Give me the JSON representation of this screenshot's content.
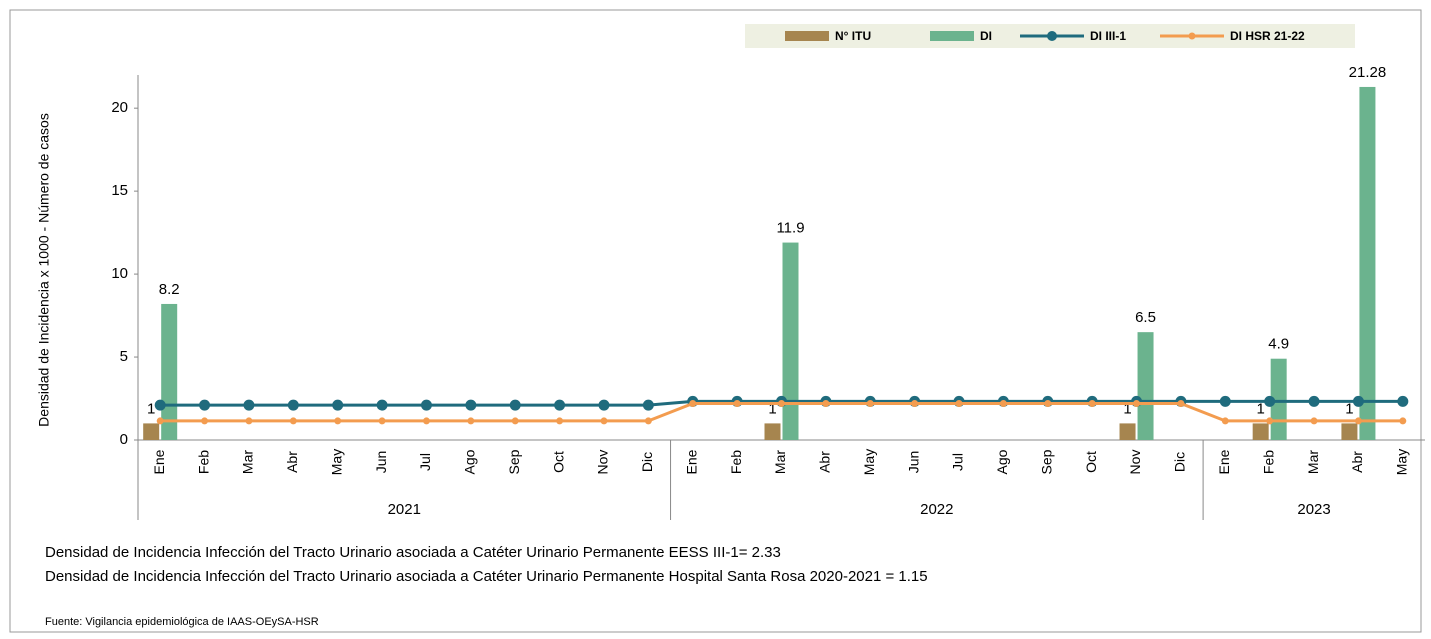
{
  "chart_data": {
    "type": "bar-line",
    "y_label": "Densidad de Incidencia x 1000 - Número de casos",
    "categories": [
      "Ene",
      "Feb",
      "Mar",
      "Abr",
      "May",
      "Jun",
      "Jul",
      "Ago",
      "Sep",
      "Oct",
      "Nov",
      "Dic",
      "Ene",
      "Feb",
      "Mar",
      "Abr",
      "May",
      "Jun",
      "Jul",
      "Ago",
      "Sep",
      "Oct",
      "Nov",
      "Dic",
      "Ene",
      "Feb",
      "Mar",
      "Abr",
      "May"
    ],
    "groups": [
      {
        "label": "2021",
        "size": 12
      },
      {
        "label": "2022",
        "size": 12
      },
      {
        "label": "2023",
        "size": 5
      }
    ],
    "series": [
      {
        "name": "N° ITU",
        "kind": "bar",
        "color": "#a6854f",
        "values": [
          1,
          null,
          null,
          null,
          null,
          null,
          null,
          null,
          null,
          null,
          null,
          null,
          null,
          null,
          1,
          null,
          null,
          null,
          null,
          null,
          null,
          null,
          1,
          null,
          null,
          1,
          null,
          1,
          null
        ]
      },
      {
        "name": "DI",
        "kind": "bar",
        "color": "#6bb38e",
        "values": [
          8.2,
          null,
          null,
          null,
          null,
          null,
          null,
          null,
          null,
          null,
          null,
          null,
          null,
          null,
          11.9,
          null,
          null,
          null,
          null,
          null,
          null,
          null,
          6.5,
          null,
          null,
          4.9,
          null,
          21.28,
          null
        ]
      },
      {
        "name": "DI III-1",
        "kind": "line",
        "color": "#1f6b7d",
        "values": [
          2.1,
          2.1,
          2.1,
          2.1,
          2.1,
          2.1,
          2.1,
          2.1,
          2.1,
          2.1,
          2.1,
          2.1,
          2.33,
          2.33,
          2.33,
          2.33,
          2.33,
          2.33,
          2.33,
          2.33,
          2.33,
          2.33,
          2.33,
          2.33,
          2.33,
          2.33,
          2.33,
          2.33,
          2.33
        ]
      },
      {
        "name": "DI HSR 21-22",
        "kind": "line",
        "color": "#f39c4f",
        "values": [
          1.15,
          1.15,
          1.15,
          1.15,
          1.15,
          1.15,
          1.15,
          1.15,
          1.15,
          1.15,
          1.15,
          1.15,
          2.2,
          2.2,
          2.2,
          2.2,
          2.2,
          2.2,
          2.2,
          2.2,
          2.2,
          2.2,
          2.2,
          2.2,
          1.15,
          1.15,
          1.15,
          1.15,
          1.15
        ]
      }
    ],
    "ylim": [
      0,
      22
    ],
    "yticks": [
      0,
      5,
      10,
      15,
      20
    ],
    "notes": [
      "Densidad de Incidencia Infección del  Tracto Urinario asociada a  Catéter Urinario Permanente  EESS III-1= 2.33",
      "Densidad de Incidencia Infección del  Tracto Urinario asociada a  Catéter Urinario Permanente  Hospital Santa Rosa 2020-2021  = 1.15"
    ],
    "source": "Fuente: Vigilancia epidemiológica de IAAS-OEySA-HSR"
  }
}
